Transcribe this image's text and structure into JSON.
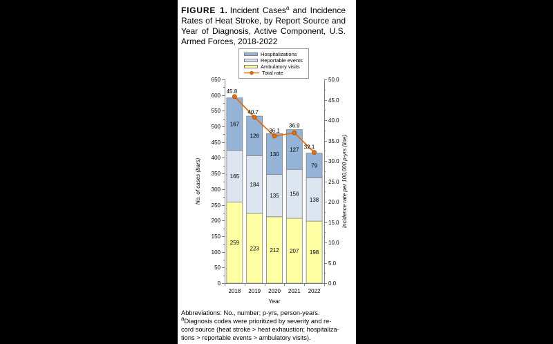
{
  "figure": {
    "label": "FIGURE 1.",
    "title_pre": "Incident Cases",
    "title_sup": "a",
    "title_post": " and Incidence Rates of Heat Stroke, by Report Source and Year of Diagnosis, Active Component, U.S. Armed Forces, 2018-2022"
  },
  "footnotes": {
    "sup": "a",
    "lines": [
      "Abbreviations: No., number; p-yrs, person-years.",
      "Diagnosis codes were prioritized by severity and re-",
      "cord source (heat stroke > heat exhaustion; hospitaliza-",
      "tions > reportable events > ambulatory visits)."
    ]
  },
  "chart_data": {
    "type": "bar",
    "subtype": "stacked-bars-with-line",
    "categories": [
      "2018",
      "2019",
      "2020",
      "2021",
      "2022"
    ],
    "series": [
      {
        "name": "Ambulatory visits",
        "values": [
          259,
          223,
          212,
          207,
          198
        ],
        "color": "#FFFFA3"
      },
      {
        "name": "Reportable events",
        "values": [
          165,
          184,
          135,
          156,
          138
        ],
        "color": "#DCE5F0"
      },
      {
        "name": "Hospitalizations",
        "values": [
          167,
          126,
          130,
          127,
          79
        ],
        "color": "#95B3D7"
      }
    ],
    "line": {
      "name": "Total rate",
      "values": [
        45.8,
        40.7,
        36.1,
        36.9,
        32.1
      ],
      "color": "#E46C0A",
      "marker_stroke": "#A04F00"
    },
    "left_axis": {
      "label": "No. of cases (bars)",
      "min": 0,
      "max": 650,
      "step": 50
    },
    "right_axis": {
      "label": "Incidence rate per 100,000 p-yrs (line)",
      "min": 0,
      "max": 50,
      "step": 5,
      "decimals": 1
    },
    "xlabel": "Year",
    "legend_order": [
      "Hospitalizations",
      "Reportable events",
      "Ambulatory visits",
      "Total rate"
    ],
    "legend_position": "top",
    "grid": false
  },
  "colors": {
    "page_bg": "#000000",
    "panel_bg": "#FFFFFF",
    "axis": "#7F7F7F",
    "bar_border": "#808080",
    "text": "#000000"
  }
}
